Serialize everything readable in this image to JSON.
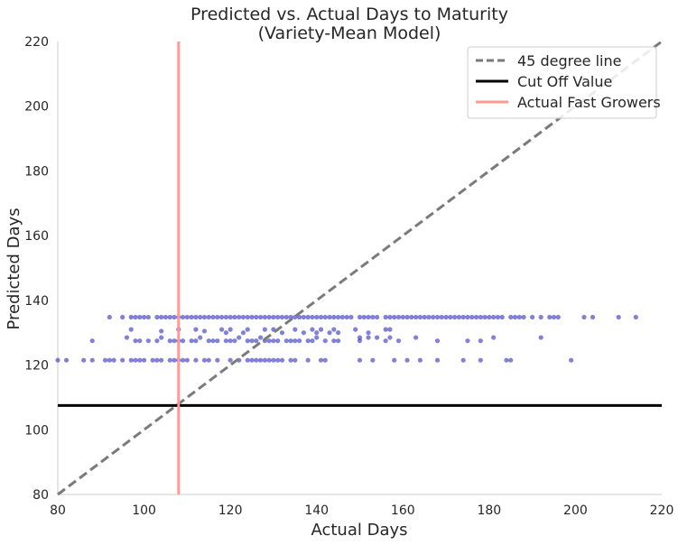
{
  "chart_data": {
    "type": "scatter",
    "title": [
      "Predicted vs. Actual Days to Maturity",
      "(Variety-Mean Model)"
    ],
    "xlabel": "Actual Days",
    "ylabel": "Predicted Days",
    "xlim": [
      80,
      220
    ],
    "ylim": [
      80,
      220
    ],
    "xticks": [
      "80",
      "100",
      "120",
      "140",
      "160",
      "180",
      "200",
      "220"
    ],
    "yticks": [
      "80",
      "100",
      "120",
      "140",
      "160",
      "180",
      "200",
      "220"
    ],
    "grid": false,
    "legend_position": "top-right",
    "colors": {
      "points": "#1a1ab8",
      "diagonal": "#7a7a7a",
      "cutoff": "#000000",
      "fast": "#ff9a93",
      "axis": "#cccccc",
      "text": "#262626"
    },
    "series": [
      {
        "name": "45 degree line",
        "kind": "line",
        "style": "dashed",
        "points": [
          [
            80,
            80
          ],
          [
            220,
            220
          ]
        ]
      },
      {
        "name": "Cut Off Value",
        "kind": "hline",
        "y": 107.5
      },
      {
        "name": "Actual Fast Growers",
        "kind": "vline",
        "x": 108
      },
      {
        "name": "",
        "kind": "scatter",
        "points": [
          [
            80,
            121.5
          ],
          [
            82,
            121.5
          ],
          [
            86,
            121.5
          ],
          [
            88,
            121.5
          ],
          [
            91,
            121.5
          ],
          [
            92,
            121.5
          ],
          [
            93,
            121.5
          ],
          [
            95,
            121.5
          ],
          [
            97,
            121.5
          ],
          [
            98,
            121.5
          ],
          [
            99,
            121.5
          ],
          [
            100,
            121.5
          ],
          [
            102,
            121.5
          ],
          [
            103,
            121.5
          ],
          [
            104,
            121.5
          ],
          [
            106,
            121.5
          ],
          [
            107,
            121.5
          ],
          [
            108,
            121.5
          ],
          [
            109,
            121.5
          ],
          [
            110,
            121.5
          ],
          [
            112,
            121.5
          ],
          [
            114,
            121.5
          ],
          [
            115,
            121.5
          ],
          [
            117,
            121.5
          ],
          [
            120,
            121.5
          ],
          [
            122,
            121.5
          ],
          [
            124,
            121.5
          ],
          [
            125,
            121.5
          ],
          [
            126,
            121.5
          ],
          [
            127,
            121.5
          ],
          [
            128,
            121.5
          ],
          [
            129,
            121.5
          ],
          [
            130,
            121.5
          ],
          [
            131,
            121.5
          ],
          [
            132,
            121.5
          ],
          [
            134,
            121.5
          ],
          [
            135,
            121.5
          ],
          [
            138,
            121.5
          ],
          [
            141,
            121.5
          ],
          [
            142,
            121.5
          ],
          [
            150,
            121.5
          ],
          [
            153,
            121.5
          ],
          [
            158,
            121.5
          ],
          [
            161,
            121.5
          ],
          [
            164,
            121.5
          ],
          [
            168,
            121.5
          ],
          [
            174,
            121.5
          ],
          [
            178,
            121.5
          ],
          [
            184,
            121.5
          ],
          [
            185,
            121.5
          ],
          [
            199,
            121.5
          ],
          [
            88,
            127.5
          ],
          [
            96,
            128.5
          ],
          [
            98,
            127.5
          ],
          [
            99,
            127.5
          ],
          [
            101,
            127.5
          ],
          [
            103,
            127.5
          ],
          [
            104,
            128.5
          ],
          [
            106,
            127.5
          ],
          [
            107,
            127.5
          ],
          [
            108,
            127.5
          ],
          [
            109,
            127.5
          ],
          [
            111,
            127.5
          ],
          [
            112,
            127.5
          ],
          [
            113,
            128.5
          ],
          [
            115,
            127.5
          ],
          [
            116,
            127.5
          ],
          [
            117,
            127.5
          ],
          [
            119,
            127.5
          ],
          [
            120,
            127.5
          ],
          [
            121,
            127.5
          ],
          [
            122,
            128.5
          ],
          [
            124,
            127.5
          ],
          [
            125,
            127.5
          ],
          [
            126,
            127.5
          ],
          [
            127,
            128.5
          ],
          [
            128,
            127.5
          ],
          [
            129,
            127.5
          ],
          [
            130,
            127.5
          ],
          [
            131,
            127.5
          ],
          [
            133,
            127.5
          ],
          [
            134,
            127.5
          ],
          [
            135,
            127.5
          ],
          [
            136,
            127.5
          ],
          [
            138,
            127.5
          ],
          [
            139,
            127.5
          ],
          [
            140,
            128.5
          ],
          [
            142,
            127.5
          ],
          [
            144,
            127.5
          ],
          [
            145,
            127.5
          ],
          [
            150,
            127.5
          ],
          [
            150,
            128.5
          ],
          [
            152,
            128.5
          ],
          [
            154,
            128.5
          ],
          [
            156,
            127.5
          ],
          [
            157,
            128.5
          ],
          [
            159,
            127.5
          ],
          [
            163,
            128.5
          ],
          [
            168,
            127.5
          ],
          [
            175,
            127.5
          ],
          [
            178,
            127.5
          ],
          [
            181,
            128.5
          ],
          [
            192,
            128.5
          ],
          [
            97,
            131
          ],
          [
            104,
            130.5
          ],
          [
            108,
            131
          ],
          [
            112,
            131
          ],
          [
            114,
            130.5
          ],
          [
            118,
            131
          ],
          [
            119,
            130
          ],
          [
            120,
            131
          ],
          [
            123,
            130
          ],
          [
            124,
            131
          ],
          [
            128,
            131
          ],
          [
            130,
            131
          ],
          [
            132,
            130
          ],
          [
            135,
            131
          ],
          [
            137,
            130
          ],
          [
            139,
            131
          ],
          [
            140,
            130
          ],
          [
            141,
            131
          ],
          [
            143,
            130
          ],
          [
            144,
            131
          ],
          [
            145,
            130
          ],
          [
            149,
            131
          ],
          [
            152,
            130
          ],
          [
            156,
            131
          ],
          [
            157,
            131
          ],
          [
            92,
            134.8
          ],
          [
            95,
            134.8
          ],
          [
            97,
            134.8
          ],
          [
            98,
            134.8
          ],
          [
            99,
            134.8
          ],
          [
            100,
            134.8
          ],
          [
            101,
            134.8
          ],
          [
            103,
            134.8
          ],
          [
            104,
            134.8
          ],
          [
            105,
            134.8
          ],
          [
            106,
            134.8
          ],
          [
            107,
            134.8
          ],
          [
            108,
            134.8
          ],
          [
            109,
            134.8
          ],
          [
            110,
            134.8
          ],
          [
            111,
            134.8
          ],
          [
            112,
            134.8
          ],
          [
            113,
            134.8
          ],
          [
            114,
            134.8
          ],
          [
            115,
            134.8
          ],
          [
            116,
            134.8
          ],
          [
            117,
            134.8
          ],
          [
            118,
            134.8
          ],
          [
            119,
            134.8
          ],
          [
            120,
            134.8
          ],
          [
            121,
            134.8
          ],
          [
            122,
            134.8
          ],
          [
            123,
            134.8
          ],
          [
            124,
            134.8
          ],
          [
            125,
            134.8
          ],
          [
            126,
            134.8
          ],
          [
            127,
            134.8
          ],
          [
            128,
            134.8
          ],
          [
            129,
            134.8
          ],
          [
            130,
            134.8
          ],
          [
            131,
            134.8
          ],
          [
            132,
            134.8
          ],
          [
            133,
            134.8
          ],
          [
            134,
            134.8
          ],
          [
            135,
            134.8
          ],
          [
            136,
            134.8
          ],
          [
            137,
            134.8
          ],
          [
            138,
            134.8
          ],
          [
            139,
            134.8
          ],
          [
            140,
            134.8
          ],
          [
            141,
            134.8
          ],
          [
            142,
            134.8
          ],
          [
            143,
            134.8
          ],
          [
            144,
            134.8
          ],
          [
            145,
            134.8
          ],
          [
            146,
            134.8
          ],
          [
            147,
            134.8
          ],
          [
            148,
            134.8
          ],
          [
            150,
            134.8
          ],
          [
            151,
            134.8
          ],
          [
            152,
            134.8
          ],
          [
            153,
            134.8
          ],
          [
            154,
            134.8
          ],
          [
            156,
            134.8
          ],
          [
            157,
            134.8
          ],
          [
            158,
            134.8
          ],
          [
            159,
            134.8
          ],
          [
            160,
            134.8
          ],
          [
            161,
            134.8
          ],
          [
            162,
            134.8
          ],
          [
            163,
            134.8
          ],
          [
            164,
            134.8
          ],
          [
            165,
            134.8
          ],
          [
            166,
            134.8
          ],
          [
            167,
            134.8
          ],
          [
            168,
            134.8
          ],
          [
            169,
            134.8
          ],
          [
            170,
            134.8
          ],
          [
            171,
            134.8
          ],
          [
            172,
            134.8
          ],
          [
            173,
            134.8
          ],
          [
            174,
            134.8
          ],
          [
            175,
            134.8
          ],
          [
            176,
            134.8
          ],
          [
            177,
            134.8
          ],
          [
            178,
            134.8
          ],
          [
            179,
            134.8
          ],
          [
            180,
            134.8
          ],
          [
            181,
            134.8
          ],
          [
            182,
            134.8
          ],
          [
            183,
            134.8
          ],
          [
            185,
            134.8
          ],
          [
            186,
            134.8
          ],
          [
            187,
            134.8
          ],
          [
            188,
            134.8
          ],
          [
            190,
            134.8
          ],
          [
            192,
            134.8
          ],
          [
            194,
            134.8
          ],
          [
            195,
            134.8
          ],
          [
            196,
            134.8
          ],
          [
            202,
            134.8
          ],
          [
            204,
            134.8
          ],
          [
            210,
            134.8
          ],
          [
            214,
            134.8
          ]
        ]
      }
    ]
  }
}
